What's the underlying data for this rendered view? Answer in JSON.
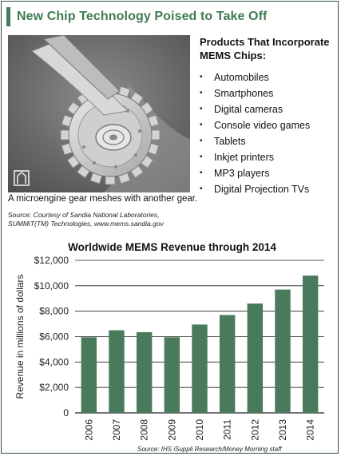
{
  "header": {
    "title": "New Chip Technology Poised to Take Off"
  },
  "photo": {
    "caption": "A microengine gear meshes with another gear.",
    "source_label": "Source:",
    "source_text": "Courtesy of Sandia National Laboratories, SUMMiT(TM) Technologies, www.mems.sandia.gov"
  },
  "products": {
    "heading": "Products That Incorporate MEMS Chips:",
    "bullet": "•",
    "items": [
      "Automobiles",
      "Smartphones",
      "Digital cameras",
      "Console video games",
      "Tablets",
      "Inkjet printers",
      "MP3 players",
      "Digital Projection TVs"
    ]
  },
  "chart_data": {
    "type": "bar",
    "title": "Worldwide MEMS Revenue through 2014",
    "xlabel": "",
    "ylabel": "Revenue in millions of dollars",
    "categories": [
      "2006",
      "2007",
      "2008",
      "2009",
      "2010",
      "2011",
      "2012",
      "2013",
      "2014"
    ],
    "values": [
      5950,
      6500,
      6350,
      5950,
      6950,
      7700,
      8600,
      9700,
      10800
    ],
    "ylim": [
      0,
      12000
    ],
    "yticks": [
      0,
      2000,
      4000,
      6000,
      8000,
      10000,
      12000
    ],
    "ytick_labels": [
      "0",
      "$2,000",
      "$4,000",
      "$6,000",
      "$8,000",
      "$10,000",
      "$12,000"
    ],
    "grid": true,
    "bar_color": "#4a7a5c",
    "source": "Source: IHS iSuppli Research/Money Morning staff"
  },
  "colors": {
    "accent": "#4a7a5c",
    "title_green": "#3f7a55"
  }
}
